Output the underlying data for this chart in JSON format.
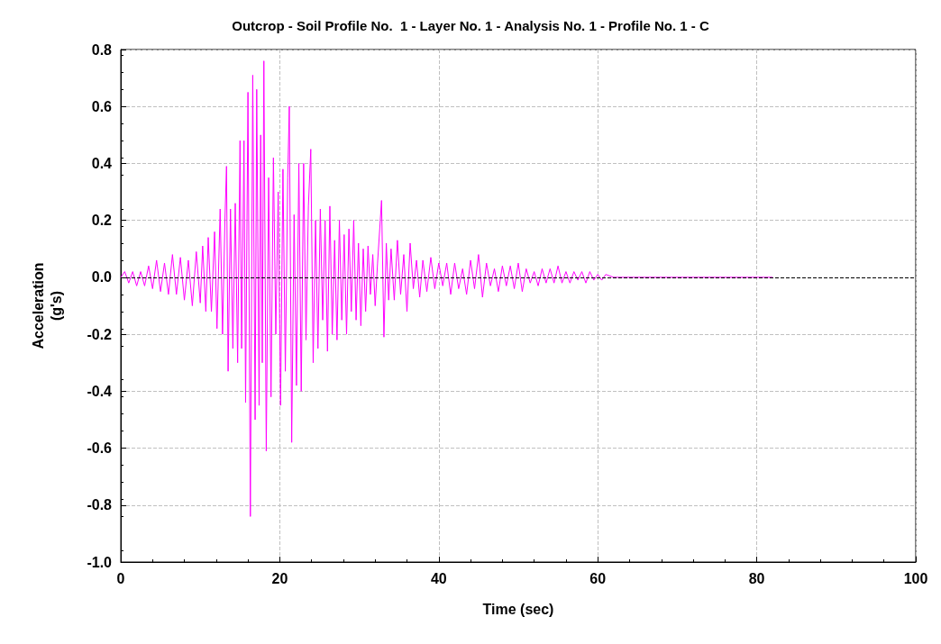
{
  "chart_data": {
    "type": "line",
    "title": "Outcrop - Soil Profile No.  1 - Layer No. 1 - Analysis No. 1 - Profile No. 1 - C",
    "xlabel": "Time (sec)",
    "ylabel": "Acceleration\n(g's)",
    "series": [
      {
        "color": "#ff00ff",
        "x": [
          0,
          0.5,
          1,
          1.5,
          2,
          2.5,
          3,
          3.5,
          4,
          4.5,
          5,
          5.5,
          6,
          6.5,
          7,
          7.5,
          8,
          8.5,
          9,
          9.5,
          10,
          10.3,
          10.7,
          11,
          11.4,
          11.8,
          12.1,
          12.5,
          12.8,
          13.1,
          13.3,
          13.5,
          13.8,
          14.1,
          14.4,
          14.7,
          15,
          15.2,
          15.5,
          15.7,
          16,
          16.3,
          16.6,
          16.9,
          17.1,
          17.4,
          17.6,
          17.8,
          18,
          18.3,
          18.6,
          18.9,
          19.2,
          19.5,
          19.8,
          20.1,
          20.4,
          20.7,
          21,
          21.2,
          21.5,
          21.8,
          22.1,
          22.4,
          22.7,
          23,
          23.3,
          23.6,
          23.9,
          24.2,
          24.5,
          24.8,
          25.1,
          25.4,
          25.7,
          26,
          26.3,
          26.6,
          26.9,
          27.2,
          27.5,
          27.8,
          28.1,
          28.4,
          28.7,
          29,
          29.3,
          29.6,
          29.9,
          30.2,
          30.5,
          30.8,
          31.1,
          31.4,
          31.7,
          32,
          32.3,
          32.8,
          33.1,
          33.4,
          33.7,
          34,
          34.4,
          34.8,
          35.2,
          35.6,
          36,
          36.4,
          36.8,
          37.2,
          37.6,
          38,
          38.5,
          39,
          39.5,
          40,
          40.5,
          41,
          41.5,
          42,
          42.5,
          43,
          43.5,
          44,
          44.5,
          45,
          45.5,
          46,
          46.5,
          47,
          47.5,
          48,
          48.5,
          49,
          49.5,
          50,
          50.5,
          51,
          51.5,
          52,
          52.5,
          53,
          53.5,
          54,
          54.5,
          55,
          55.5,
          56,
          56.5,
          57,
          57.5,
          58,
          58.5,
          59,
          59.5,
          60,
          60.5,
          61,
          62,
          82
        ],
        "values": [
          0,
          0.02,
          -0.02,
          0.02,
          -0.03,
          0.02,
          -0.03,
          0.04,
          -0.04,
          0.06,
          -0.05,
          0.05,
          -0.06,
          0.08,
          -0.06,
          0.07,
          -0.08,
          0.06,
          -0.1,
          0.09,
          -0.09,
          0.11,
          -0.12,
          0.14,
          -0.12,
          0.16,
          -0.18,
          0.24,
          -0.2,
          0.2,
          0.39,
          -0.33,
          0.24,
          -0.25,
          0.26,
          -0.3,
          0.48,
          -0.25,
          0.48,
          -0.44,
          0.65,
          -0.84,
          0.71,
          -0.5,
          0.66,
          -0.45,
          0.5,
          -0.3,
          0.76,
          -0.61,
          0.35,
          -0.42,
          0.42,
          -0.2,
          0.3,
          -0.45,
          0.38,
          -0.33,
          0.35,
          0.6,
          -0.58,
          0.22,
          -0.38,
          0.4,
          -0.4,
          0.4,
          -0.22,
          0.25,
          0.45,
          -0.3,
          0.2,
          -0.25,
          0.24,
          -0.15,
          0.2,
          -0.26,
          0.25,
          -0.2,
          0.13,
          -0.22,
          0.2,
          -0.15,
          0.15,
          -0.2,
          0.17,
          -0.12,
          0.2,
          -0.15,
          0.12,
          -0.17,
          0.1,
          -0.12,
          0.11,
          -0.06,
          0.08,
          -0.1,
          0.05,
          0.27,
          -0.21,
          0.12,
          -0.08,
          0.1,
          -0.08,
          0.13,
          -0.06,
          0.08,
          -0.12,
          0.12,
          -0.04,
          0.06,
          -0.07,
          0.06,
          -0.05,
          0.07,
          -0.04,
          0.05,
          -0.03,
          0.05,
          -0.06,
          0.05,
          -0.04,
          0.03,
          -0.06,
          0.06,
          -0.04,
          0.08,
          -0.07,
          0.05,
          -0.03,
          0.03,
          -0.05,
          0.04,
          -0.03,
          0.04,
          -0.04,
          0.05,
          -0.05,
          0.03,
          -0.02,
          0.02,
          -0.03,
          0.03,
          -0.02,
          0.03,
          -0.02,
          0.04,
          -0.02,
          0.02,
          -0.02,
          0.02,
          -0.01,
          0.02,
          -0.02,
          0.02,
          -0.01,
          0.01,
          -0.01,
          0.01,
          0,
          0
        ]
      }
    ],
    "xlim": [
      0,
      100
    ],
    "xticks": [
      0,
      20,
      40,
      60,
      80,
      100
    ],
    "ylim": [
      -1.0,
      0.8
    ],
    "yticks": [
      {
        "value": -1.0,
        "label": "-1.0"
      },
      -0.8,
      -0.6,
      -0.4,
      -0.2,
      {
        "value": 0,
        "label": "0.0"
      },
      0.2,
      0.4,
      0.6,
      0.8
    ],
    "ref_lines": [
      {
        "axis": "y",
        "value": 0,
        "color": "#000000",
        "line_style": "dashed"
      }
    ],
    "grid": true,
    "line_style": "solid",
    "marker": "none"
  }
}
